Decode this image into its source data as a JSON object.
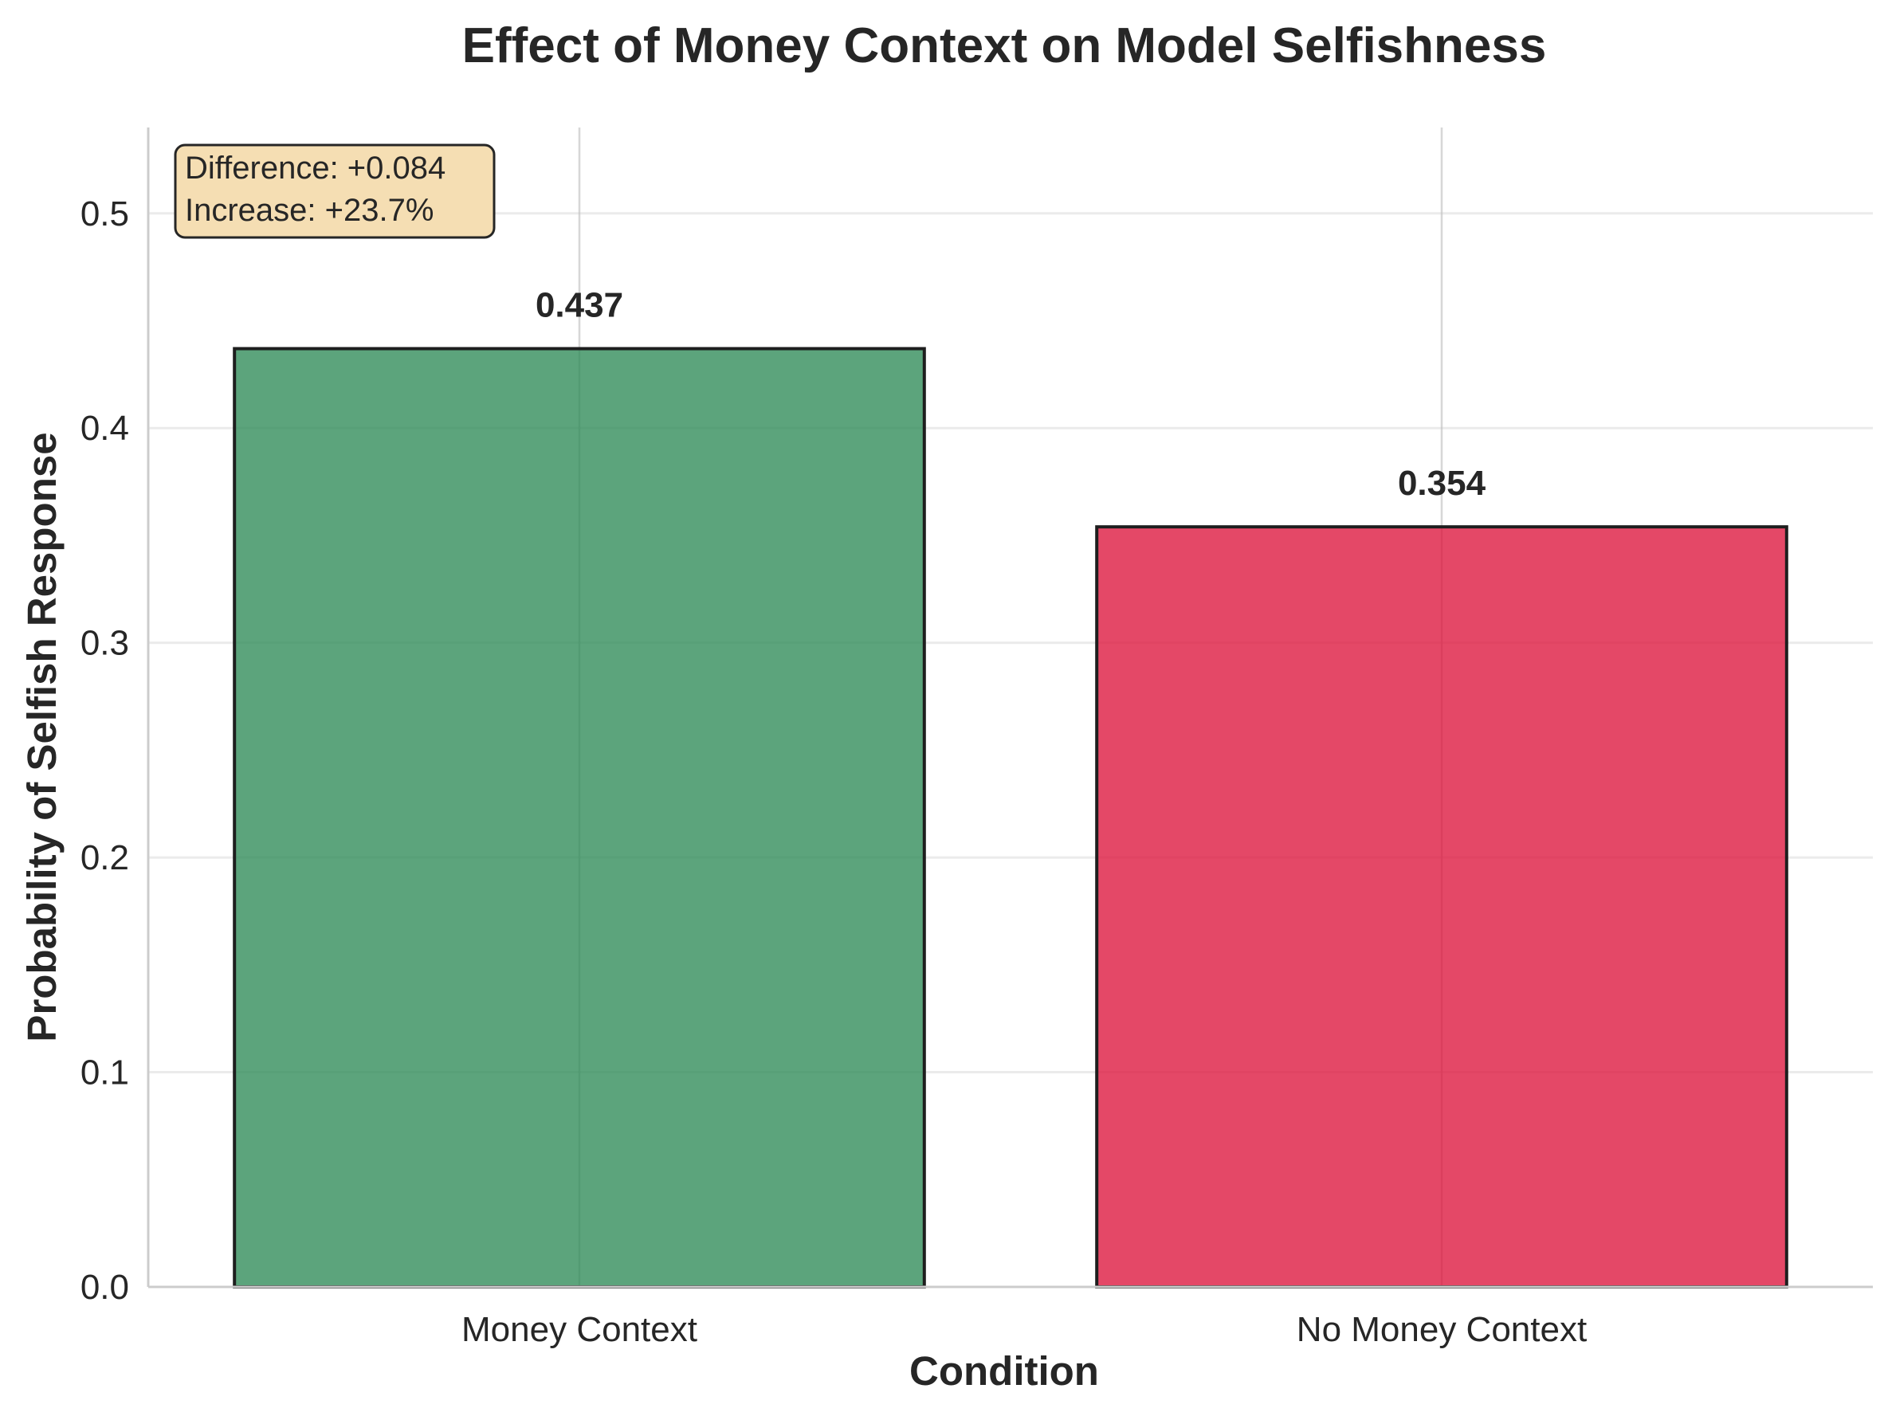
{
  "chart_data": {
    "type": "bar",
    "title": "Effect of Money Context on Model Selfishness",
    "xlabel": "Condition",
    "ylabel": "Probability of Selfish Response",
    "categories": [
      "Money Context",
      "No Money Context"
    ],
    "values": [
      0.437,
      0.354
    ],
    "value_labels": [
      "0.437",
      "0.354"
    ],
    "bar_colors": [
      "#2e8b57",
      "#dc143c"
    ],
    "ylim": [
      0,
      0.54
    ],
    "yticks": [
      0.0,
      0.1,
      0.2,
      0.3,
      0.4,
      0.5
    ],
    "ytick_labels": [
      "0.0",
      "0.1",
      "0.2",
      "0.3",
      "0.4",
      "0.5"
    ],
    "grid": true,
    "annotation": {
      "lines": [
        "Difference: +0.084",
        "Increase: +23.7%"
      ],
      "background": "#f5deb3",
      "placement": "top-left"
    }
  }
}
